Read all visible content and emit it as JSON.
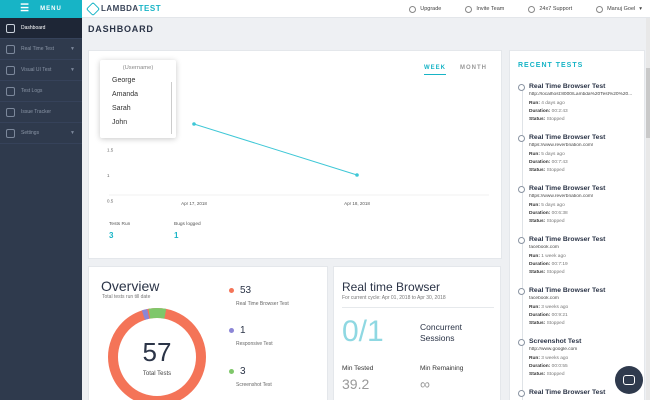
{
  "sidebar": {
    "menu_label": "MENU",
    "items": [
      {
        "label": "Dashboard",
        "icon": "dashboard-icon"
      },
      {
        "label": "Real Time Test",
        "icon": "realtime-icon"
      },
      {
        "label": "Visual UI Test",
        "icon": "visual-icon"
      },
      {
        "label": "Test Logs",
        "icon": "logs-icon"
      },
      {
        "label": "Issue Tracker",
        "icon": "issue-icon"
      },
      {
        "label": "Settings",
        "icon": "gear-icon"
      }
    ]
  },
  "topbar": {
    "logo_a": "LAMBDA",
    "logo_b": "TEST",
    "upgrade": "Upgrade",
    "invite": "Invite Team",
    "support": "24x7 Support",
    "user": "Manuj Goel"
  },
  "page_title": "DASHBOARD",
  "chart_card": {
    "tab_week": "WEEK",
    "tab_month": "MONTH",
    "dropdown": {
      "placeholder": "Username",
      "options": [
        "George",
        "Amanda",
        "Sarah",
        "John"
      ]
    },
    "stats": {
      "tests_run_label": "Tests Run",
      "tests_run_value": "3",
      "bugs_label": "Bugs logged",
      "bugs_value": "1"
    }
  },
  "chart_data": {
    "type": "line",
    "x": [
      "Apr 17, 2018",
      "Apr 18, 2018"
    ],
    "series": [
      {
        "values": [
          2,
          1
        ]
      }
    ],
    "y_ticks": [
      "1.5",
      "1",
      "0.5"
    ],
    "ylim": [
      0.5,
      2.5
    ],
    "grid": false,
    "color": "#3ec7d6"
  },
  "overview": {
    "title": "Overview",
    "subtitle": "Total tests run till date",
    "total": "57",
    "total_label": "Total Tests",
    "items": [
      {
        "value": "53",
        "label": "Real Time Browser Test",
        "color": "#f47458"
      },
      {
        "value": "1",
        "label": "Responsive Test",
        "color": "#8c86d6"
      },
      {
        "value": "3",
        "label": "Screenshot Test",
        "color": "#7fc76a"
      }
    ]
  },
  "realtime": {
    "title": "Real time Browser",
    "subtitle": "For current cycle: Apr 01, 2018 to Apr 30, 2018",
    "sessions": "0/1",
    "concurrent": "Concurrent",
    "sessions_label": "Sessions",
    "min_tested_label": "Min Tested",
    "min_tested": "39.2",
    "min_remaining_label": "Min Remaining",
    "min_remaining": "∞"
  },
  "recent": {
    "title": "RECENT TESTS",
    "run_label": "Run:",
    "duration_label": "Duration:",
    "status_label": "Status:",
    "items": [
      {
        "name": "Real Time Browser Test",
        "url": "http://localhost:8000/Lambda%20Test%20%20...",
        "run": "4 days ago",
        "duration": "00:2:43",
        "status": "Stopped"
      },
      {
        "name": "Real Time Browser Test",
        "url": "https://www.reverbnation.com/",
        "run": "5 days ago",
        "duration": "00:7:43",
        "status": "Stopped"
      },
      {
        "name": "Real Time Browser Test",
        "url": "https://www.reverbnation.com/",
        "run": "5 days ago",
        "duration": "00:6:38",
        "status": "Stopped"
      },
      {
        "name": "Real Time Browser Test",
        "url": "facebook.com",
        "run": "1 week ago",
        "duration": "00:7:19",
        "status": "Stopped"
      },
      {
        "name": "Real Time Browser Test",
        "url": "facebook.com",
        "run": "3 weeks ago",
        "duration": "00:9:21",
        "status": "Stopped"
      },
      {
        "name": "Screenshot Test",
        "url": "http://www.google.com",
        "run": "3 weeks ago",
        "duration": "00:0:55",
        "status": "Stopped"
      },
      {
        "name": "Real Time Browser Test",
        "url": "",
        "run": "",
        "duration": "",
        "status": ""
      }
    ]
  }
}
